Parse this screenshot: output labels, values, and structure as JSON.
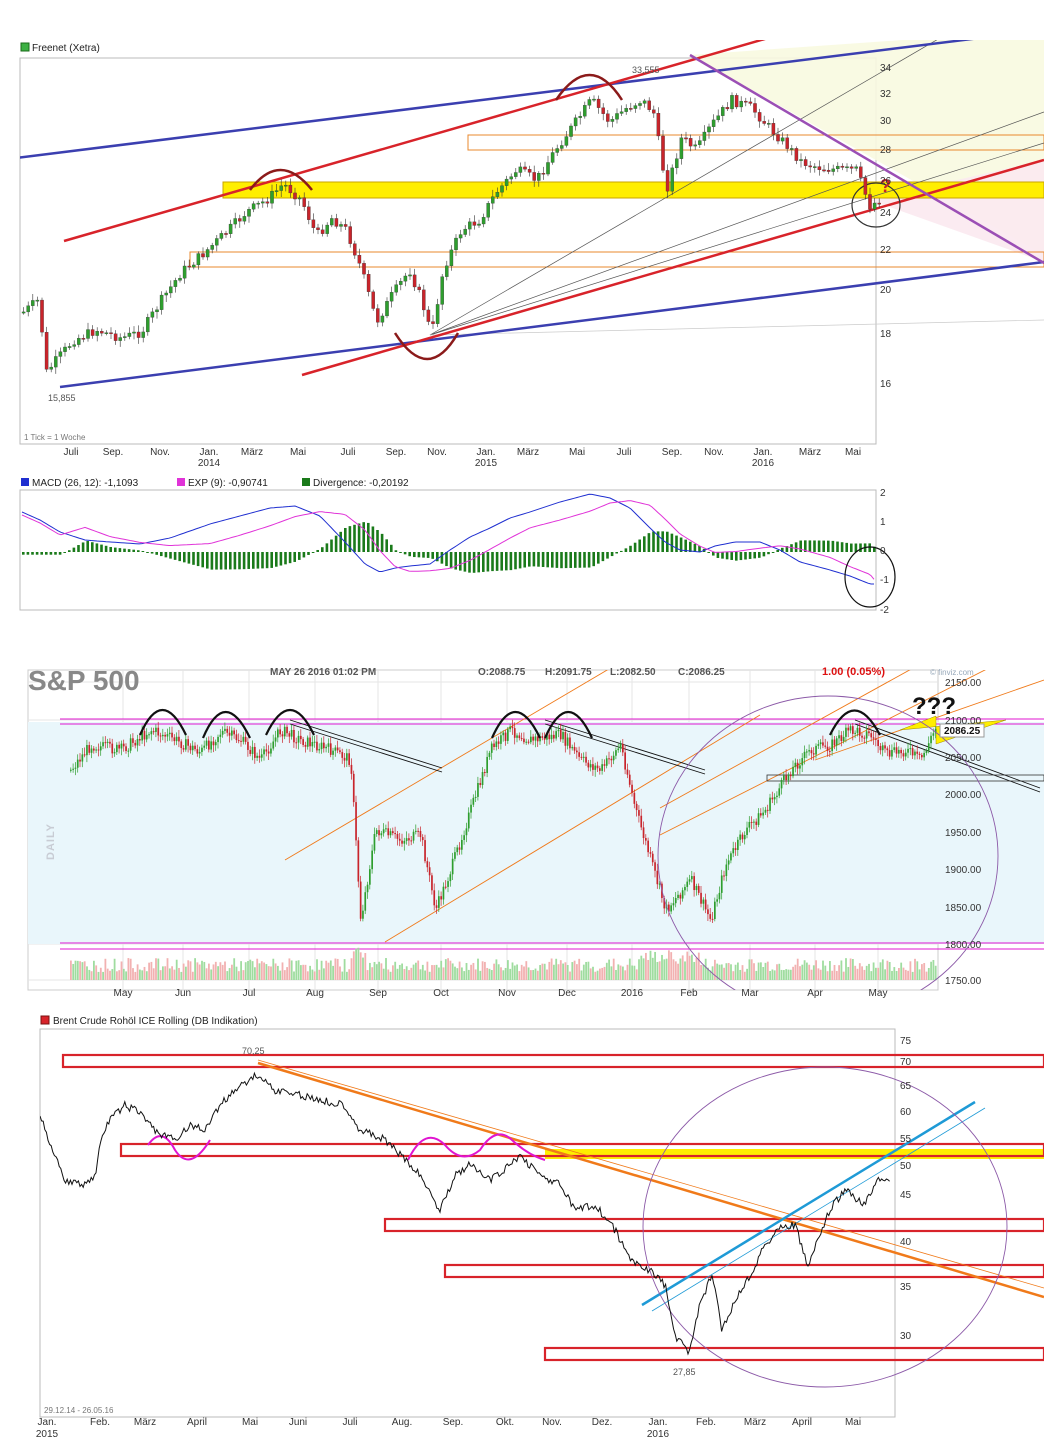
{
  "colors": {
    "up": "#2e9e2e",
    "down": "#c8242b",
    "blue_line": "#3b3fb0",
    "red_line": "#d8232a",
    "purple_line": "#9b4fb5",
    "yellow_band": "#ffee00",
    "orange_line": "#f07a1a",
    "cyan_line": "#1e9ad6",
    "macd": "#1f2fd0",
    "exp": "#e033d8",
    "divergence": "#1a7a1a",
    "sp_bg": "#e9f6fb",
    "magenta_arc": "#e015d0"
  },
  "panel1": {
    "legend": "Freenet (Xetra)",
    "price_high_label": "33,555",
    "price_low_label": "15,855",
    "tick_note": "1 Tick = 1 Woche",
    "annotation_q": "?",
    "y_ticks": [
      "34",
      "32",
      "30",
      "28",
      "26",
      "24",
      "22",
      "20",
      "18",
      "16"
    ],
    "x_months": [
      "Juli",
      "Sep.",
      "Nov.",
      "Jan.",
      "März",
      "Mai",
      "Juli",
      "Sep.",
      "Nov.",
      "Jan.",
      "März",
      "Mai",
      "Juli",
      "Sep.",
      "Nov.",
      "Jan.",
      "März",
      "Mai"
    ],
    "x_years": [
      "2014",
      "2015",
      "2016"
    ],
    "chart_data": {
      "type": "candlestick",
      "title": "Freenet (Xetra)",
      "period": "weekly",
      "ylim": [
        15,
        35
      ],
      "high": 33.555,
      "low": 15.855,
      "x_start": "Juli 2013",
      "x_end": "Mai 2016"
    }
  },
  "panel2": {
    "macd_label": "MACD (26, 12): -1,1093",
    "exp_label": "EXP (9): -0,90741",
    "div_label": "Divergence: -0,20192",
    "y_ticks": [
      "2",
      "1",
      "0",
      "-1",
      "-2"
    ],
    "chart_data": {
      "type": "line",
      "series": [
        {
          "name": "MACD (26, 12)",
          "last": -1.1093
        },
        {
          "name": "EXP (9)",
          "last": -0.90741
        },
        {
          "name": "Divergence",
          "last": -0.20192
        }
      ],
      "ylim": [
        -2,
        2
      ]
    }
  },
  "panel3": {
    "title": "S&P 500",
    "date": "MAY 26 2016 01:02 PM",
    "open": "O:2088.75",
    "high": "H:2091.75",
    "low": "L:2082.50",
    "close": "C:2086.25",
    "change": "1.00 (0.05%)",
    "watermark": "© finviz.com",
    "daily": "DAILY",
    "question": "???",
    "last_price": "2086.25",
    "y_ticks": [
      "2150.00",
      "2100.00",
      "2050.00",
      "2000.00",
      "1950.00",
      "1900.00",
      "1850.00",
      "1800.00",
      "1750.00"
    ],
    "x_months": [
      "May",
      "Jun",
      "Jul",
      "Aug",
      "Sep",
      "Oct",
      "Nov",
      "Dec",
      "2016",
      "Feb",
      "Mar",
      "Apr",
      "May"
    ],
    "chart_data": {
      "type": "candlestick",
      "title": "S&P 500",
      "period": "daily",
      "ylim": [
        1750,
        2150
      ],
      "open": 2088.75,
      "high": 2091.75,
      "low": 2082.5,
      "close": 2086.25,
      "change": "1.00 (0.05%)"
    }
  },
  "panel4": {
    "legend": "Brent Crude Rohöl ICE Rolling (DB Indikation)",
    "high_label": "70,25",
    "low_label": "27,85",
    "range_label": "29.12.14 - 26.05.16",
    "y_ticks": [
      "75",
      "70",
      "65",
      "60",
      "55",
      "50",
      "45",
      "40",
      "35",
      "30"
    ],
    "x_months": [
      "Jan.",
      "Feb.",
      "März",
      "April",
      "Mai",
      "Juni",
      "Juli",
      "Aug.",
      "Sep.",
      "Okt.",
      "Nov.",
      "Dez.",
      "Jan.",
      "Feb.",
      "März",
      "April",
      "Mai"
    ],
    "x_years": [
      "2015",
      "2016"
    ],
    "chart_data": {
      "type": "line",
      "title": "Brent Crude Rohöl ICE Rolling (DB Indikation)",
      "ylim": [
        25,
        77
      ],
      "high": 70.25,
      "low": 27.85,
      "x_start": "29.12.14",
      "x_end": "26.05.16"
    }
  }
}
